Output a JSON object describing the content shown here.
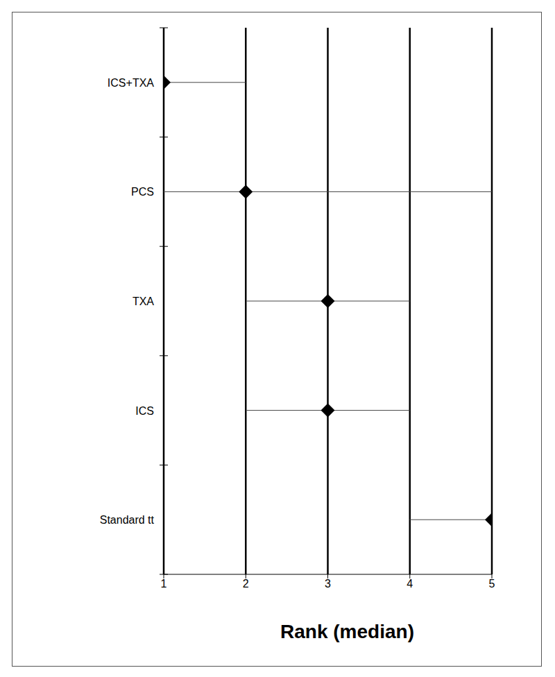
{
  "chart_data": {
    "type": "forest",
    "x_label": "Rank (median)",
    "categories": [
      "ICS+TXA",
      "PCS",
      "TXA",
      "ICS",
      "Standard tt"
    ],
    "values": [
      1,
      2,
      3,
      3,
      5
    ],
    "intervals": [
      [
        1,
        2
      ],
      [
        1,
        5
      ],
      [
        2,
        4
      ],
      [
        2,
        4
      ],
      [
        4,
        5
      ]
    ],
    "xlim": [
      1,
      5
    ],
    "xticks": [
      1,
      2,
      3,
      4,
      5
    ],
    "grid": true,
    "color": "#000000",
    "marker": "diamond"
  }
}
